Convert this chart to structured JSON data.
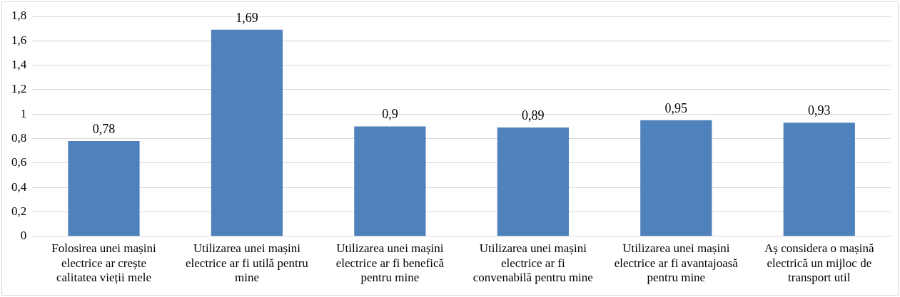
{
  "chart_data": {
    "type": "bar",
    "categories": [
      "Folosirea unei mașini electrice ar crește calitatea vieții mele",
      "Utilizarea unei mașini electrice ar fi utilă pentru mine",
      "Utilizarea unei mașini electrice ar fi benefică pentru mine",
      "Utilizarea unei mașini electrice ar fi convenabilă pentru mine",
      "Utilizarea unei mașini electrice ar fi avantajoasă pentru mine",
      "Aș considera o mașină electrică un mijloc de transport util"
    ],
    "values": [
      0.78,
      1.69,
      0.9,
      0.89,
      0.95,
      0.93
    ],
    "value_labels": [
      "0,78",
      "1,69",
      "0,9",
      "0,89",
      "0,95",
      "0,93"
    ],
    "color": "#4f81bd",
    "ylim": [
      0,
      1.8
    ],
    "yticks": [
      0,
      {
        "value": 0.2,
        "label": "0,2"
      },
      {
        "value": 0.4,
        "label": "0,4"
      },
      {
        "value": 0.6,
        "label": "0,6"
      },
      {
        "value": 0.8,
        "label": "0,8"
      },
      1,
      {
        "value": 1.2,
        "label": "1,2"
      },
      {
        "value": 1.4,
        "label": "1,4"
      },
      {
        "value": 1.6,
        "label": "1,6"
      },
      {
        "value": 1.8,
        "label": "1,8"
      }
    ],
    "grid": "y",
    "legend": false
  }
}
